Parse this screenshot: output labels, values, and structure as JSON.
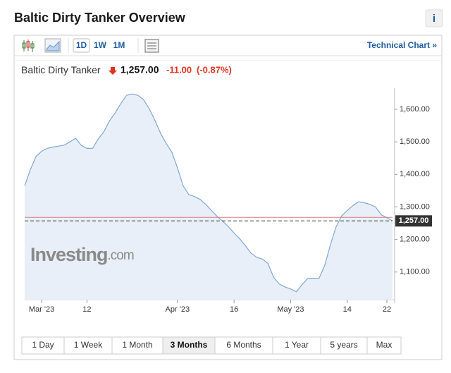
{
  "header": {
    "title": "Baltic Dirty Tanker Overview",
    "info": "i"
  },
  "toolbar": {
    "intervals": [
      "1D",
      "1W",
      "1M"
    ],
    "link": "Technical Chart »"
  },
  "quote": {
    "name": "Baltic Dirty Tanker",
    "price": "1,257.00",
    "change": "-11.00",
    "change_pct": "(-0.87%)"
  },
  "watermark": [
    "Investing",
    ".com"
  ],
  "chart_data": {
    "type": "area",
    "color": "#7fa8d6",
    "fill": "#e9eff8",
    "categories": [
      null,
      null,
      null,
      "Mar '23",
      null,
      null,
      null,
      null,
      null,
      null,
      null,
      "12",
      null,
      null,
      null,
      null,
      null,
      null,
      null,
      null,
      null,
      null,
      null,
      null,
      null,
      null,
      null,
      "Apr '23",
      null,
      null,
      null,
      null,
      null,
      null,
      null,
      null,
      null,
      "16",
      null,
      null,
      null,
      null,
      null,
      null,
      null,
      null,
      null,
      "May '23",
      null,
      null,
      null,
      null,
      null,
      null,
      null,
      null,
      null,
      "14",
      null,
      null,
      null,
      null,
      null,
      null,
      "22",
      null
    ],
    "values": [
      1365,
      1414,
      1455,
      1471,
      1480,
      1484,
      1487,
      1490,
      1500,
      1511,
      1489,
      1480,
      1480,
      1509,
      1531,
      1565,
      1589,
      1618,
      1643,
      1647,
      1643,
      1630,
      1602,
      1567,
      1527,
      1495,
      1469,
      1420,
      1365,
      1338,
      1332,
      1323,
      1308,
      1289,
      1271,
      1256,
      1239,
      1220,
      1202,
      1181,
      1158,
      1145,
      1140,
      1126,
      1083,
      1063,
      1054,
      1048,
      1039,
      1061,
      1080,
      1081,
      1080,
      1119,
      1182,
      1238,
      1272,
      1289,
      1304,
      1316,
      1313,
      1308,
      1300,
      1276,
      1267,
      1257
    ],
    "ylim": [
      1015,
      1665
    ],
    "yticks": [
      {
        "value": 1100,
        "label": "1,100.00"
      },
      {
        "value": 1200,
        "label": "1,200.00"
      },
      {
        "value": 1300,
        "label": "1,300.00"
      },
      {
        "value": 1400,
        "label": "1,400.00"
      },
      {
        "value": 1500,
        "label": "1,500.00"
      },
      {
        "value": 1600,
        "label": "1,600.00"
      }
    ],
    "price_line": {
      "value": 1257,
      "label": "1,257.00"
    },
    "prev_close": 1268
  },
  "ranges": {
    "buttons": [
      "1 Day",
      "1 Week",
      "1 Month",
      "3 Months",
      "6 Months",
      "1 Year",
      "5 years",
      "Max"
    ],
    "active": 3
  }
}
